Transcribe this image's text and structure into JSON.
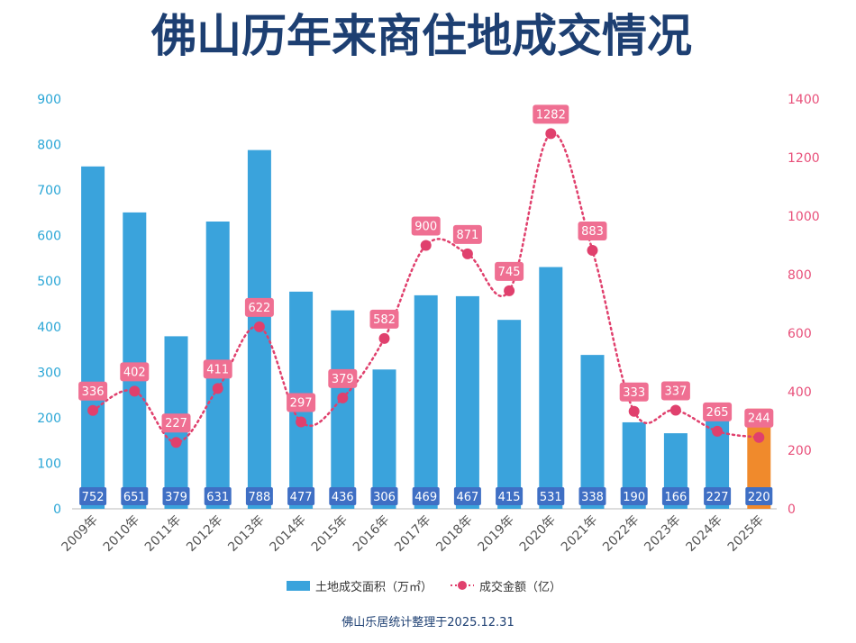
{
  "chart_data": {
    "type": "bar",
    "title": "佛山历年来商住地成交情况",
    "categories": [
      "2009年",
      "2010年",
      "2011年",
      "2012年",
      "2013年",
      "2014年",
      "2015年",
      "2016年",
      "2017年",
      "2018年",
      "2019年",
      "2020年",
      "2021年",
      "2022年",
      "2023年",
      "2024年",
      "2025年"
    ],
    "series": [
      {
        "name": "土地成交面积（万㎡）",
        "type": "bar",
        "axis": "left",
        "color": "#3aa3dc",
        "highlight_color": "#f08a2c",
        "highlight_index": 16,
        "values": [
          752,
          651,
          379,
          631,
          788,
          477,
          436,
          306,
          469,
          467,
          415,
          531,
          338,
          190,
          166,
          227,
          220
        ]
      },
      {
        "name": "成交金额（亿）",
        "type": "line",
        "style": "dotted",
        "axis": "right",
        "color": "#e0406d",
        "values": [
          336,
          402,
          227,
          411,
          622,
          297,
          379,
          582,
          900,
          871,
          745,
          1282,
          883,
          333,
          337,
          265,
          244
        ]
      }
    ],
    "y_left": {
      "ylim": [
        0,
        900
      ],
      "ticks": [
        0,
        100,
        200,
        300,
        400,
        500,
        600,
        700,
        800,
        900
      ]
    },
    "y_right": {
      "ylim": [
        0,
        1400
      ],
      "ticks": [
        0,
        200,
        400,
        600,
        800,
        1000,
        1200,
        1400
      ]
    },
    "grid": false,
    "legend_position": "bottom-center"
  },
  "footer": {
    "source": "佛山乐居统计整理于2025.12.31"
  }
}
